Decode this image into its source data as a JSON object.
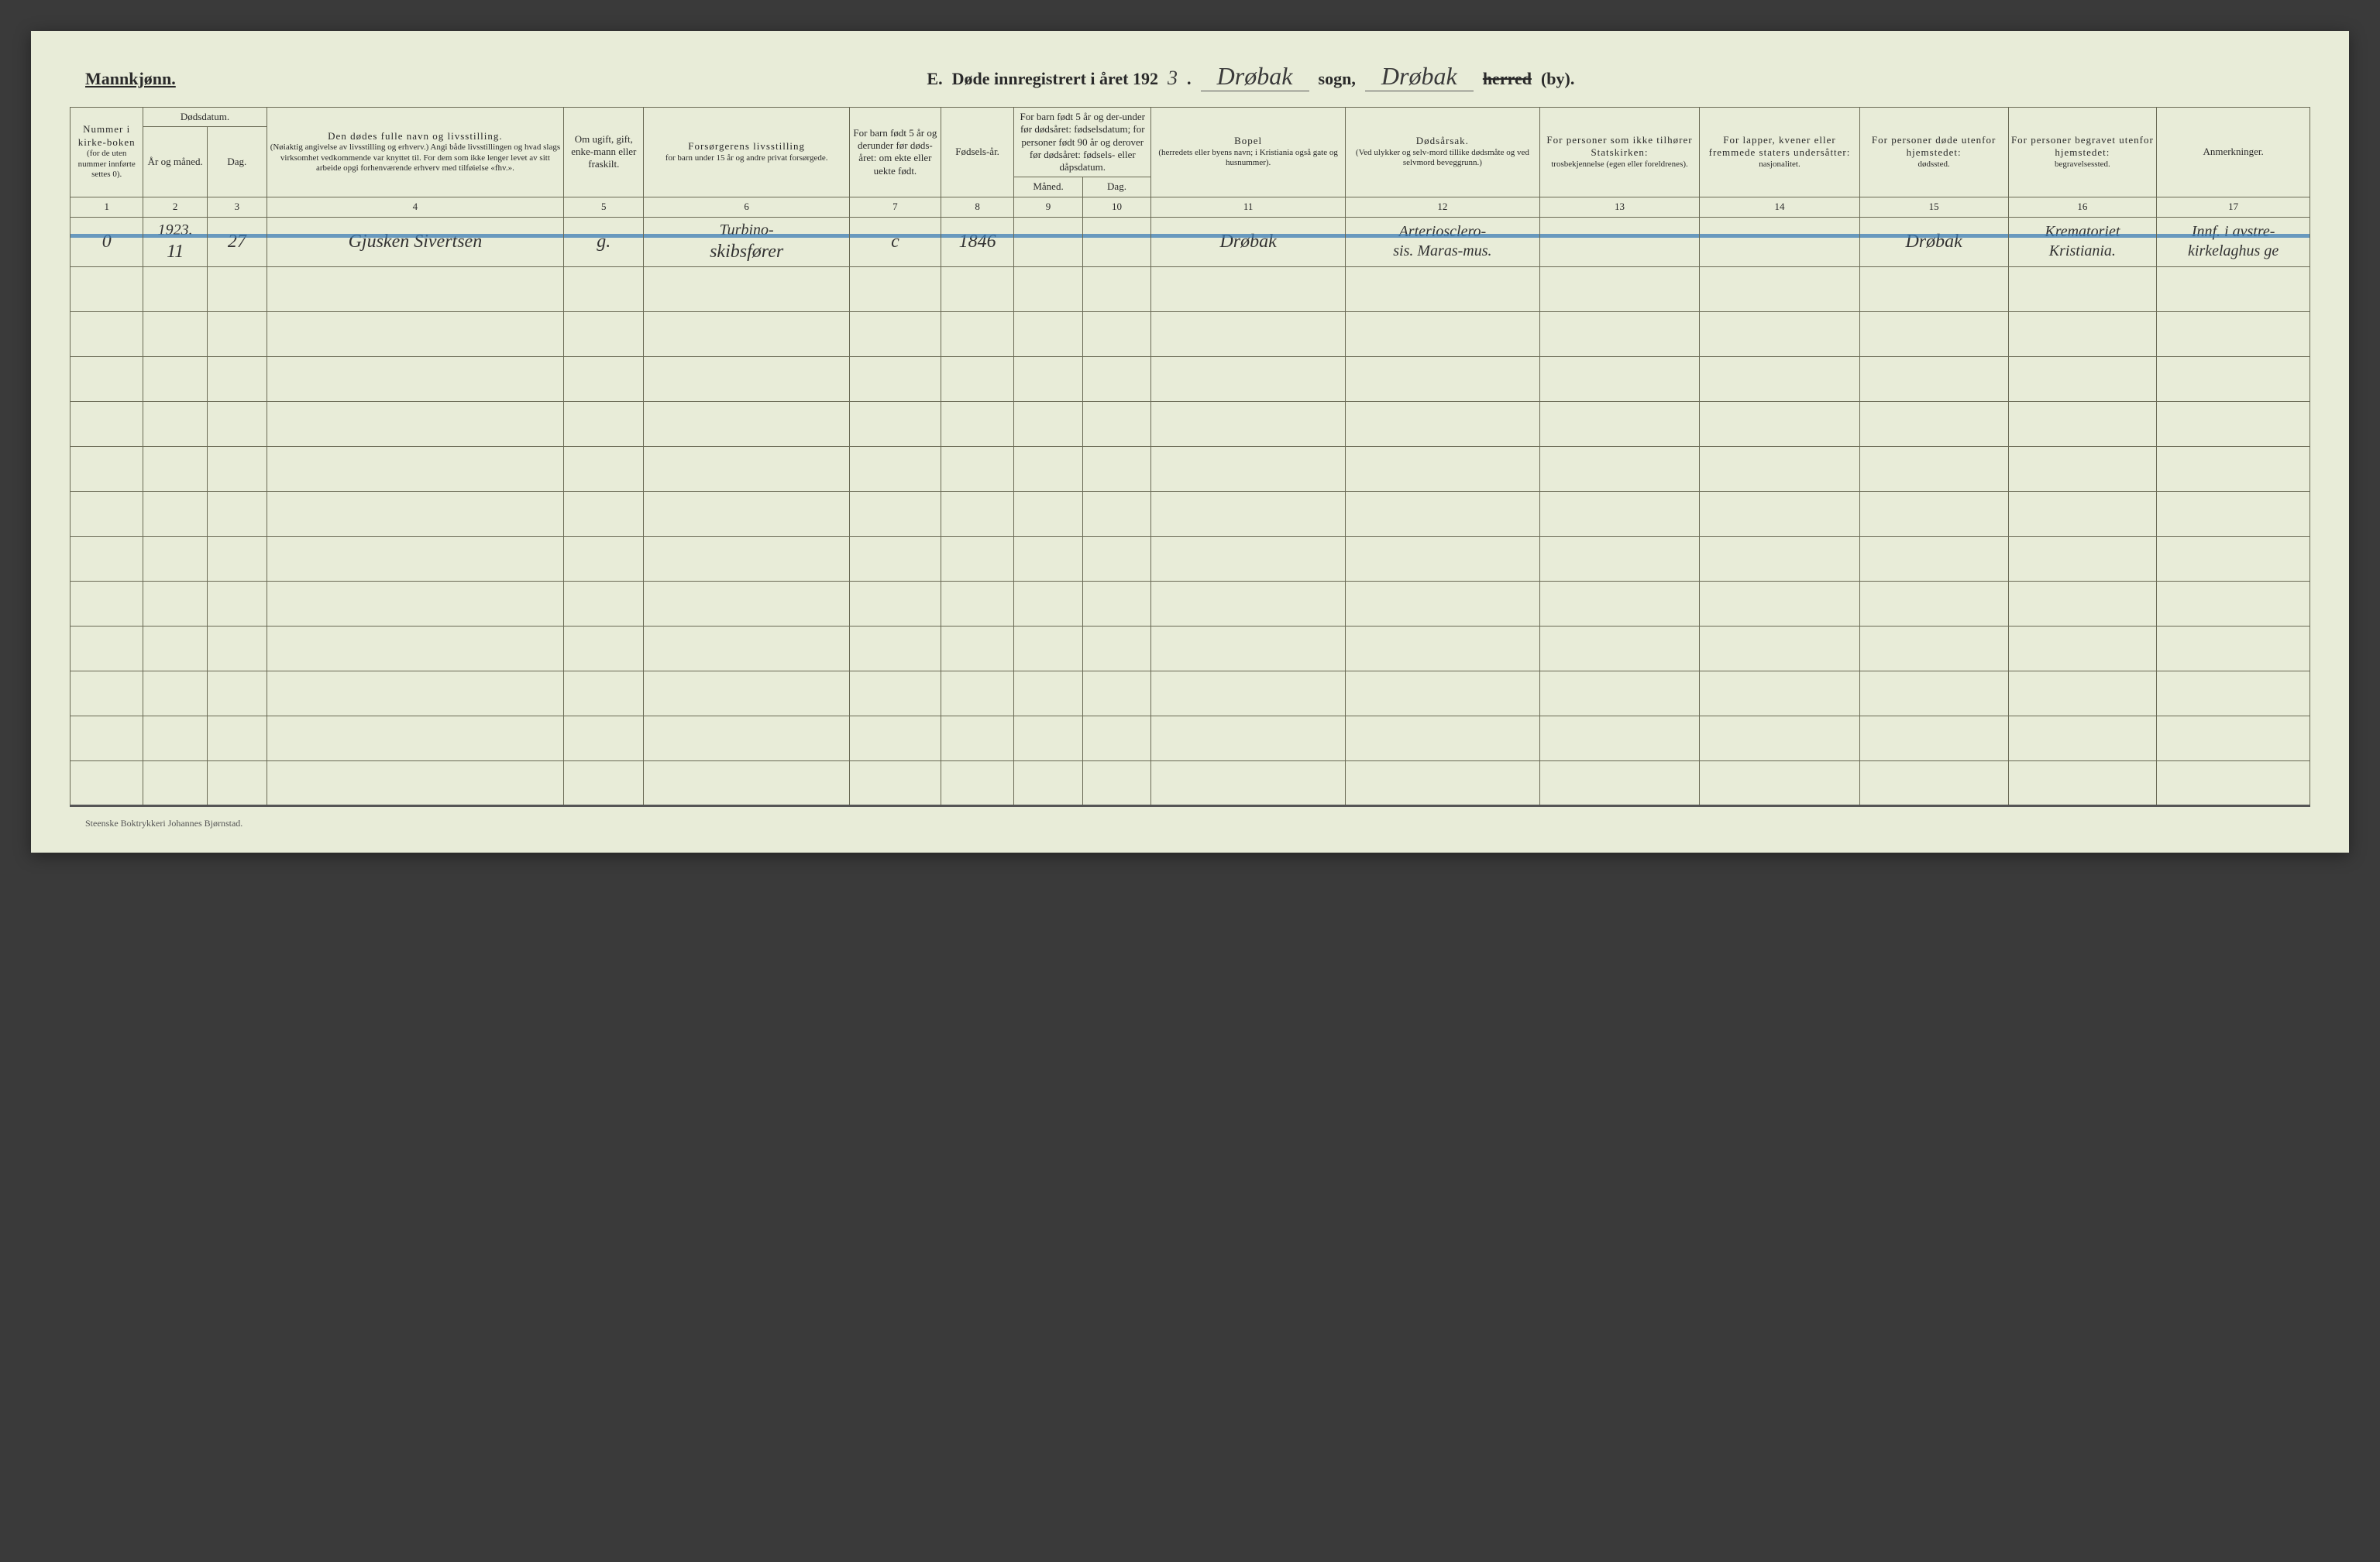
{
  "header": {
    "gender": "Mannkjønn.",
    "section_letter": "E.",
    "title_prefix": "Døde innregistrert i året 192",
    "year_digit": "3",
    "period": ".",
    "parish_hand": "Drøbak",
    "sogn_label": "sogn,",
    "district_hand": "Drøbak",
    "herred_strike": "herred",
    "by_label": "(by)."
  },
  "columns": {
    "c1": {
      "title": "Nummer i kirke-boken",
      "sub": "(for de uten nummer innførte settes 0)."
    },
    "c2_group": "Dødsdatum.",
    "c2": "År og måned.",
    "c3": "Dag.",
    "c4": {
      "title": "Den dødes fulle navn og livsstilling.",
      "sub": "(Nøiaktig angivelse av livsstilling og erhverv.) Angi både livsstillingen og hvad slags virksomhet vedkommende var knyttet til. For dem som ikke lenger levet av sitt arbeide opgi forhenværende erhverv med tilføielse «fhv.»."
    },
    "c5": "Om ugift, gift, enke-mann eller fraskilt.",
    "c6": {
      "title": "Forsørgerens livsstilling",
      "sub": "for barn under 15 år og andre privat forsørgede."
    },
    "c7": "For barn født 5 år og derunder før døds-året: om ekte eller uekte født.",
    "c8": "Fødsels-år.",
    "c9_group": "For barn født 5 år og der-under før dødsåret: fødselsdatum; for personer født 90 år og derover før dødsåret: fødsels- eller dåpsdatum.",
    "c9": "Måned.",
    "c10": "Dag.",
    "c11": {
      "title": "Bopel",
      "sub": "(herredets eller byens navn; i Kristiania også gate og husnummer)."
    },
    "c12": {
      "title": "Dødsårsak.",
      "sub": "(Ved ulykker og selv-mord tillike dødsmåte og ved selvmord beveggrunn.)"
    },
    "c13": {
      "title": "For personer som ikke tilhører Statskirken:",
      "sub": "trosbekjennelse (egen eller foreldrenes)."
    },
    "c14": {
      "title": "For lapper, kvener eller fremmede staters undersåtter:",
      "sub": "nasjonalitet."
    },
    "c15": {
      "title": "For personer døde utenfor hjemstedet:",
      "sub": "dødssted."
    },
    "c16": {
      "title": "For personer begravet utenfor hjemstedet:",
      "sub": "begravelsessted."
    },
    "c17": "Anmerkninger."
  },
  "colnums": [
    "1",
    "2",
    "3",
    "4",
    "5",
    "6",
    "7",
    "8",
    "9",
    "10",
    "11",
    "12",
    "13",
    "14",
    "15",
    "16",
    "17"
  ],
  "row1_upper": {
    "c2": "1923.",
    "c6": "Turbino-",
    "c12": "Arteriosclero-",
    "c16": "Krematoriet",
    "c17": "Innf. i avstre-"
  },
  "row1": {
    "c1": "0",
    "c2": "11",
    "c3": "27",
    "c4": "Gjusken Sivertsen",
    "c5": "g.",
    "c6": "skibsfører",
    "c7": "c",
    "c8": "1846",
    "c9": "",
    "c10": "",
    "c11": "Drøbak",
    "c12": "sis. Maras-mus.",
    "c13": "",
    "c14": "",
    "c15": "Drøbak",
    "c16": "Kristiania.",
    "c17": "kirkelaghus ge"
  },
  "footer": "Steenske Boktrykkeri Johannes Bjørnstad.",
  "style": {
    "page_bg": "#e8ecd8",
    "border_color": "#6a6a55",
    "strike_color": "#3d7db5",
    "text_color": "#2a2a2a",
    "hand_color": "#333333",
    "blank_rows": 12
  }
}
